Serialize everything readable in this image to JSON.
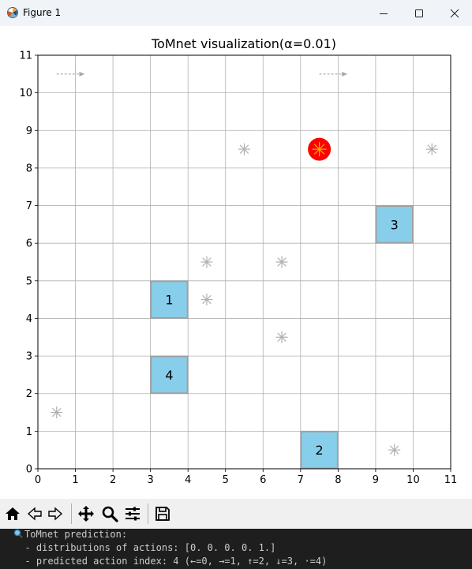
{
  "window": {
    "title": "Figure 1"
  },
  "chart_data": {
    "type": "scatter",
    "title": "ToMnet visualization(α=0.01)",
    "xlim": [
      0,
      11
    ],
    "ylim": [
      0,
      11
    ],
    "x_ticks": [
      "0",
      "1",
      "2",
      "3",
      "4",
      "5",
      "6",
      "7",
      "8",
      "9",
      "10",
      "11"
    ],
    "y_ticks": [
      "0",
      "1",
      "2",
      "3",
      "4",
      "5",
      "6",
      "7",
      "8",
      "9",
      "10",
      "11"
    ],
    "grid": true,
    "boxes": [
      {
        "label": "1",
        "x": 3,
        "y": 4
      },
      {
        "label": "2",
        "x": 7,
        "y": 0
      },
      {
        "label": "3",
        "x": 9,
        "y": 6
      },
      {
        "label": "4",
        "x": 3,
        "y": 2
      }
    ],
    "stars": [
      {
        "x": 5.5,
        "y": 8.5
      },
      {
        "x": 10.5,
        "y": 8.5
      },
      {
        "x": 4.5,
        "y": 5.5
      },
      {
        "x": 6.5,
        "y": 5.5
      },
      {
        "x": 4.5,
        "y": 4.5
      },
      {
        "x": 6.5,
        "y": 3.5
      },
      {
        "x": 0.5,
        "y": 1.5
      },
      {
        "x": 9.5,
        "y": 0.5
      }
    ],
    "agent": {
      "x": 7.5,
      "y": 8.5
    },
    "arrows": [
      {
        "x": 0.5,
        "y": 10.5,
        "dx": 0.75
      },
      {
        "x": 7.5,
        "y": 10.5,
        "dx": 0.75
      }
    ],
    "colors": {
      "box": "#87ceeb",
      "agent": "#ff0000",
      "agent_star": "#ffa500",
      "star": "#b0b0b0",
      "arrow": "#a9a9a9",
      "grid": "#b0b0b0"
    }
  },
  "toolbar": {
    "buttons": [
      "home-icon",
      "back-icon",
      "forward-icon",
      "pan-icon",
      "zoom-icon",
      "configure-subplots-icon",
      "save-icon"
    ]
  },
  "console": {
    "line1": "ToMnet prediction:",
    "line2": "  - distributions of actions: [0. 0. 0. 0. 1.]",
    "line3": "  - predicted action index: 4 (←=0, →=1, ↑=2, ↓=3, ·=4)"
  }
}
